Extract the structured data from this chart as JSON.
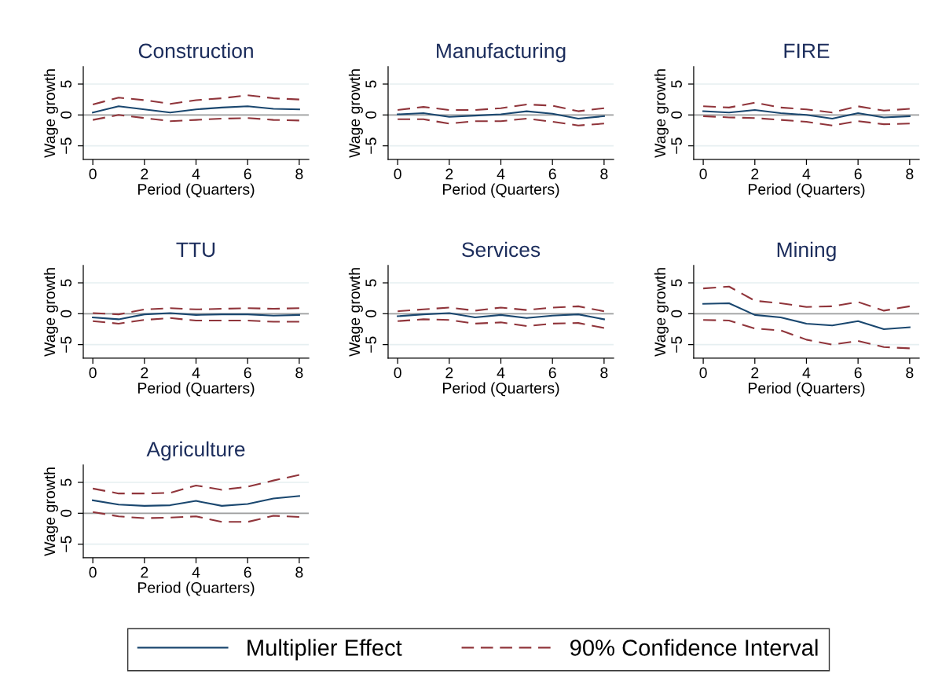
{
  "chart_data": [
    {
      "type": "line",
      "title": "Construction",
      "xlabel": "Period (Quarters)",
      "ylabel": "Wage growth",
      "x": [
        0,
        1,
        2,
        3,
        4,
        5,
        6,
        7,
        8
      ],
      "xlim": [
        -0.37,
        8.37
      ],
      "xticks": [
        0,
        2,
        4,
        6,
        8
      ],
      "ylim": [
        -7.2,
        7.8
      ],
      "yticks": [
        -5,
        0,
        5
      ],
      "grid": "y",
      "ref_lines": [
        {
          "axis": "y",
          "value": 0,
          "color": "#a0a0a0"
        }
      ],
      "series": [
        {
          "color": "#1a476f",
          "line_style": "solid",
          "values": [
            0.4,
            1.4,
            0.9,
            0.4,
            0.9,
            1.2,
            1.4,
            1.0,
            0.9
          ]
        },
        {
          "color": "#90353b",
          "line_style": "dashed",
          "values": [
            1.7,
            2.8,
            2.4,
            1.8,
            2.4,
            2.7,
            3.2,
            2.7,
            2.5
          ]
        },
        {
          "color": "#90353b",
          "line_style": "dashed",
          "values": [
            -0.8,
            0.0,
            -0.5,
            -1.0,
            -0.8,
            -0.6,
            -0.5,
            -0.8,
            -0.9
          ]
        }
      ]
    },
    {
      "type": "line",
      "title": "Manufacturing",
      "xlabel": "Period (Quarters)",
      "ylabel": "Wage growth",
      "x": [
        0,
        1,
        2,
        3,
        4,
        5,
        6,
        7,
        8
      ],
      "xlim": [
        -0.37,
        8.37
      ],
      "xticks": [
        0,
        2,
        4,
        6,
        8
      ],
      "ylim": [
        -7.2,
        7.8
      ],
      "yticks": [
        -5,
        0,
        5
      ],
      "grid": "y",
      "ref_lines": [
        {
          "axis": "y",
          "value": 0,
          "color": "#a0a0a0"
        }
      ],
      "series": [
        {
          "color": "#1a476f",
          "line_style": "solid",
          "values": [
            0.1,
            0.3,
            -0.3,
            -0.1,
            0.1,
            0.6,
            0.2,
            -0.6,
            -0.2
          ]
        },
        {
          "color": "#90353b",
          "line_style": "dashed",
          "values": [
            0.8,
            1.3,
            0.8,
            0.8,
            1.1,
            1.7,
            1.5,
            0.6,
            1.1
          ]
        },
        {
          "color": "#90353b",
          "line_style": "dashed",
          "values": [
            -0.7,
            -0.7,
            -1.4,
            -1.0,
            -1.0,
            -0.6,
            -1.1,
            -1.7,
            -1.4
          ]
        }
      ]
    },
    {
      "type": "line",
      "title": "FIRE",
      "xlabel": "Period (Quarters)",
      "ylabel": "Wage growth",
      "x": [
        0,
        1,
        2,
        3,
        4,
        5,
        6,
        7,
        8
      ],
      "xlim": [
        -0.37,
        8.37
      ],
      "xticks": [
        0,
        2,
        4,
        6,
        8
      ],
      "ylim": [
        -7.2,
        7.8
      ],
      "yticks": [
        -5,
        0,
        5
      ],
      "grid": "y",
      "ref_lines": [
        {
          "axis": "y",
          "value": 0,
          "color": "#a0a0a0"
        }
      ],
      "series": [
        {
          "color": "#1a476f",
          "line_style": "solid",
          "values": [
            0.6,
            0.4,
            0.8,
            0.3,
            0.0,
            -0.6,
            0.3,
            -0.4,
            -0.2
          ]
        },
        {
          "color": "#90353b",
          "line_style": "dashed",
          "values": [
            1.4,
            1.2,
            2.0,
            1.2,
            0.9,
            0.4,
            1.4,
            0.7,
            1.0
          ]
        },
        {
          "color": "#90353b",
          "line_style": "dashed",
          "values": [
            -0.2,
            -0.4,
            -0.5,
            -0.8,
            -1.1,
            -1.7,
            -1.0,
            -1.5,
            -1.4
          ]
        }
      ]
    },
    {
      "type": "line",
      "title": "TTU",
      "xlabel": "Period (Quarters)",
      "ylabel": "Wage growth",
      "x": [
        0,
        1,
        2,
        3,
        4,
        5,
        6,
        7,
        8
      ],
      "xlim": [
        -0.37,
        8.37
      ],
      "xticks": [
        0,
        2,
        4,
        6,
        8
      ],
      "ylim": [
        -7.2,
        7.8
      ],
      "yticks": [
        -5,
        0,
        5
      ],
      "grid": "y",
      "ref_lines": [
        {
          "axis": "y",
          "value": 0,
          "color": "#a0a0a0"
        }
      ],
      "series": [
        {
          "color": "#1a476f",
          "line_style": "solid",
          "values": [
            -0.6,
            -0.9,
            -0.1,
            0.1,
            -0.2,
            -0.1,
            -0.1,
            -0.3,
            -0.2
          ]
        },
        {
          "color": "#90353b",
          "line_style": "dashed",
          "values": [
            0.1,
            -0.1,
            0.7,
            0.9,
            0.7,
            0.8,
            0.9,
            0.8,
            0.9
          ]
        },
        {
          "color": "#90353b",
          "line_style": "dashed",
          "values": [
            -1.2,
            -1.6,
            -1.0,
            -0.7,
            -1.1,
            -1.1,
            -1.1,
            -1.3,
            -1.3
          ]
        }
      ]
    },
    {
      "type": "line",
      "title": "Services",
      "xlabel": "Period (Quarters)",
      "ylabel": "Wage growth",
      "x": [
        0,
        1,
        2,
        3,
        4,
        5,
        6,
        7,
        8
      ],
      "xlim": [
        -0.37,
        8.37
      ],
      "xticks": [
        0,
        2,
        4,
        6,
        8
      ],
      "ylim": [
        -7.2,
        7.8
      ],
      "yticks": [
        -5,
        0,
        5
      ],
      "grid": "y",
      "ref_lines": [
        {
          "axis": "y",
          "value": 0,
          "color": "#a0a0a0"
        }
      ],
      "series": [
        {
          "color": "#1a476f",
          "line_style": "solid",
          "values": [
            -0.4,
            -0.1,
            0.1,
            -0.6,
            -0.2,
            -0.7,
            -0.3,
            -0.1,
            -0.9
          ]
        },
        {
          "color": "#90353b",
          "line_style": "dashed",
          "values": [
            0.4,
            0.7,
            1.0,
            0.5,
            1.0,
            0.6,
            1.0,
            1.2,
            0.4
          ]
        },
        {
          "color": "#90353b",
          "line_style": "dashed",
          "values": [
            -1.2,
            -0.9,
            -1.0,
            -1.6,
            -1.4,
            -2.0,
            -1.6,
            -1.5,
            -2.3
          ]
        }
      ]
    },
    {
      "type": "line",
      "title": "Mining",
      "xlabel": "Period (Quarters)",
      "ylabel": "Wage growth",
      "x": [
        0,
        1,
        2,
        3,
        4,
        5,
        6,
        7,
        8
      ],
      "xlim": [
        -0.37,
        8.37
      ],
      "xticks": [
        0,
        2,
        4,
        6,
        8
      ],
      "ylim": [
        -7.2,
        7.8
      ],
      "yticks": [
        -5,
        0,
        5
      ],
      "grid": "y",
      "ref_lines": [
        {
          "axis": "y",
          "value": 0,
          "color": "#a0a0a0"
        }
      ],
      "series": [
        {
          "color": "#1a476f",
          "line_style": "solid",
          "values": [
            1.6,
            1.7,
            -0.2,
            -0.6,
            -1.6,
            -1.9,
            -1.2,
            -2.5,
            -2.2
          ]
        },
        {
          "color": "#90353b",
          "line_style": "dashed",
          "values": [
            4.1,
            4.4,
            2.1,
            1.7,
            1.1,
            1.2,
            1.9,
            0.5,
            1.2
          ]
        },
        {
          "color": "#90353b",
          "line_style": "dashed",
          "values": [
            -1.0,
            -1.1,
            -2.4,
            -2.7,
            -4.2,
            -5.0,
            -4.4,
            -5.4,
            -5.6
          ]
        }
      ]
    },
    {
      "type": "line",
      "title": "Agriculture",
      "xlabel": "Period (Quarters)",
      "ylabel": "Wage growth",
      "x": [
        0,
        1,
        2,
        3,
        4,
        5,
        6,
        7,
        8
      ],
      "xlim": [
        -0.37,
        8.37
      ],
      "xticks": [
        0,
        2,
        4,
        6,
        8
      ],
      "ylim": [
        -7.2,
        7.8
      ],
      "yticks": [
        -5,
        0,
        5
      ],
      "grid": "y",
      "legend": "bottom",
      "ref_lines": [
        {
          "axis": "y",
          "value": 0,
          "color": "#a0a0a0"
        }
      ],
      "series": [
        {
          "name": "Multiplier Effect",
          "color": "#1a476f",
          "line_style": "solid",
          "values": [
            2.1,
            1.4,
            1.2,
            1.3,
            2.0,
            1.2,
            1.5,
            2.4,
            2.8
          ]
        },
        {
          "name": "90% Confidence Interval",
          "color": "#90353b",
          "line_style": "dashed",
          "values": [
            4.0,
            3.2,
            3.2,
            3.3,
            4.5,
            3.8,
            4.3,
            5.3,
            6.2
          ]
        },
        {
          "color": "#90353b",
          "line_style": "dashed",
          "values": [
            0.2,
            -0.5,
            -0.8,
            -0.7,
            -0.5,
            -1.4,
            -1.4,
            -0.4,
            -0.6
          ]
        }
      ]
    }
  ]
}
